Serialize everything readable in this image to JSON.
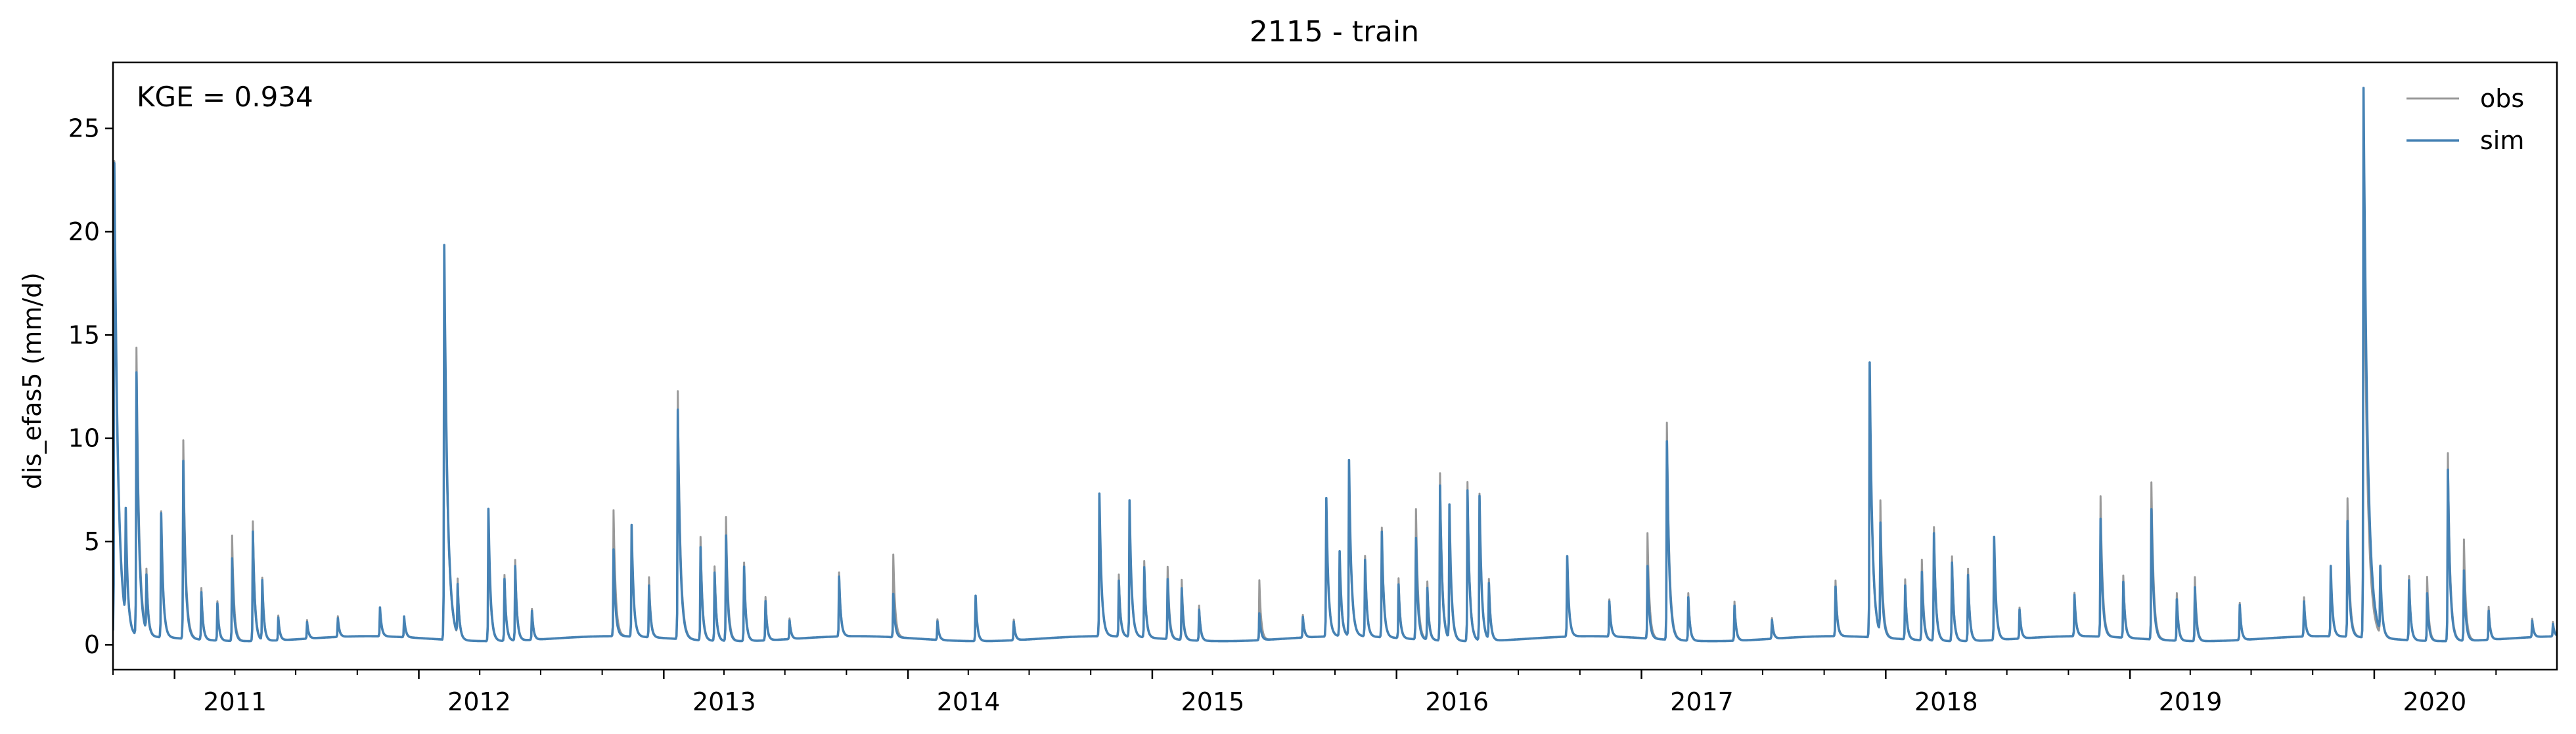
{
  "chart_data": {
    "type": "line",
    "title": "2115 - train",
    "xlabel": "",
    "ylabel": "dis_efas5 (mm/d)",
    "annotation": "KGE = 0.934",
    "xlim": [
      "2010-10-01",
      "2020-09-30"
    ],
    "ylim": [
      -1.2,
      28.2
    ],
    "x_ticks": [
      "2011",
      "2012",
      "2013",
      "2014",
      "2015",
      "2016",
      "2017",
      "2018",
      "2019",
      "2020"
    ],
    "y_ticks": [
      0,
      5,
      10,
      15,
      20,
      25
    ],
    "grid": false,
    "legend_position": "top-right",
    "baseflow": 0.3,
    "series": [
      {
        "name": "obs",
        "color": "#999999",
        "peaks": [
          {
            "x": "2010-10-03",
            "y": 23.3
          },
          {
            "x": "2010-10-20",
            "y": 5.3
          },
          {
            "x": "2010-11-05",
            "y": 14.2
          },
          {
            "x": "2010-11-20",
            "y": 3.2
          },
          {
            "x": "2010-12-12",
            "y": 6.4
          },
          {
            "x": "2011-01-14",
            "y": 9.9
          },
          {
            "x": "2011-02-10",
            "y": 2.8
          },
          {
            "x": "2011-03-06",
            "y": 2.2
          },
          {
            "x": "2011-03-28",
            "y": 5.4
          },
          {
            "x": "2011-04-28",
            "y": 6.1
          },
          {
            "x": "2011-05-12",
            "y": 3.3
          },
          {
            "x": "2011-06-05",
            "y": 1.5
          },
          {
            "x": "2011-07-18",
            "y": 1.2
          },
          {
            "x": "2011-09-02",
            "y": 1.3
          },
          {
            "x": "2011-11-04",
            "y": 1.6
          },
          {
            "x": "2011-12-10",
            "y": 1.2
          },
          {
            "x": "2012-02-08",
            "y": 18.8
          },
          {
            "x": "2012-02-28",
            "y": 3.0
          },
          {
            "x": "2012-04-14",
            "y": 6.2
          },
          {
            "x": "2012-05-08",
            "y": 3.5
          },
          {
            "x": "2012-05-24",
            "y": 4.2
          },
          {
            "x": "2012-06-18",
            "y": 1.8
          },
          {
            "x": "2012-10-18",
            "y": 6.4
          },
          {
            "x": "2012-11-14",
            "y": 5.6
          },
          {
            "x": "2012-12-10",
            "y": 3.2
          },
          {
            "x": "2013-01-22",
            "y": 12.3
          },
          {
            "x": "2013-02-25",
            "y": 5.3
          },
          {
            "x": "2013-03-18",
            "y": 3.9
          },
          {
            "x": "2013-04-04",
            "y": 6.3
          },
          {
            "x": "2013-05-01",
            "y": 4.1
          },
          {
            "x": "2013-06-02",
            "y": 2.4
          },
          {
            "x": "2013-07-08",
            "y": 1.3
          },
          {
            "x": "2013-09-20",
            "y": 3.4
          },
          {
            "x": "2013-12-10",
            "y": 4.3
          },
          {
            "x": "2014-02-14",
            "y": 1.3
          },
          {
            "x": "2014-04-12",
            "y": 2.3
          },
          {
            "x": "2014-06-08",
            "y": 1.3
          },
          {
            "x": "2014-10-14",
            "y": 7.0
          },
          {
            "x": "2014-11-12",
            "y": 3.3
          },
          {
            "x": "2014-11-28",
            "y": 6.8
          },
          {
            "x": "2014-12-20",
            "y": 4.0
          },
          {
            "x": "2015-01-24",
            "y": 3.8
          },
          {
            "x": "2015-02-14",
            "y": 3.2
          },
          {
            "x": "2015-03-12",
            "y": 2.0
          },
          {
            "x": "2015-06-10",
            "y": 3.2
          },
          {
            "x": "2015-08-14",
            "y": 1.4
          },
          {
            "x": "2015-09-18",
            "y": 7.0
          },
          {
            "x": "2015-10-08",
            "y": 4.0
          },
          {
            "x": "2015-10-22",
            "y": 8.5
          },
          {
            "x": "2015-11-15",
            "y": 4.2
          },
          {
            "x": "2015-12-10",
            "y": 5.6
          },
          {
            "x": "2016-01-04",
            "y": 3.2
          },
          {
            "x": "2016-01-30",
            "y": 6.6
          },
          {
            "x": "2016-02-16",
            "y": 3.1
          },
          {
            "x": "2016-03-06",
            "y": 8.4
          },
          {
            "x": "2016-03-20",
            "y": 6.2
          },
          {
            "x": "2016-04-16",
            "y": 8.0
          },
          {
            "x": "2016-05-04",
            "y": 7.4
          },
          {
            "x": "2016-05-18",
            "y": 3.2
          },
          {
            "x": "2016-09-12",
            "y": 4.2
          },
          {
            "x": "2016-11-14",
            "y": 2.1
          },
          {
            "x": "2017-01-10",
            "y": 5.4
          },
          {
            "x": "2017-02-08",
            "y": 10.8
          },
          {
            "x": "2017-03-12",
            "y": 2.6
          },
          {
            "x": "2017-05-20",
            "y": 2.2
          },
          {
            "x": "2017-07-15",
            "y": 1.3
          },
          {
            "x": "2017-10-18",
            "y": 3.0
          },
          {
            "x": "2017-12-08",
            "y": 13.3
          },
          {
            "x": "2017-12-24",
            "y": 6.7
          },
          {
            "x": "2018-01-30",
            "y": 3.2
          },
          {
            "x": "2018-02-24",
            "y": 4.2
          },
          {
            "x": "2018-03-14",
            "y": 5.8
          },
          {
            "x": "2018-04-10",
            "y": 4.4
          },
          {
            "x": "2018-05-04",
            "y": 3.8
          },
          {
            "x": "2018-06-12",
            "y": 5.2
          },
          {
            "x": "2018-07-20",
            "y": 1.8
          },
          {
            "x": "2018-10-10",
            "y": 2.4
          },
          {
            "x": "2018-11-18",
            "y": 7.1
          },
          {
            "x": "2018-12-22",
            "y": 3.3
          },
          {
            "x": "2019-02-02",
            "y": 7.9
          },
          {
            "x": "2019-03-12",
            "y": 2.6
          },
          {
            "x": "2019-04-08",
            "y": 3.4
          },
          {
            "x": "2019-06-14",
            "y": 2.1
          },
          {
            "x": "2019-09-18",
            "y": 2.2
          },
          {
            "x": "2019-10-28",
            "y": 3.6
          },
          {
            "x": "2019-11-22",
            "y": 7.0
          },
          {
            "x": "2019-12-16",
            "y": 23.2
          },
          {
            "x": "2020-01-10",
            "y": 3.6
          },
          {
            "x": "2020-02-22",
            "y": 3.4
          },
          {
            "x": "2020-03-20",
            "y": 3.4
          },
          {
            "x": "2020-04-20",
            "y": 9.4
          },
          {
            "x": "2020-05-14",
            "y": 5.2
          },
          {
            "x": "2020-06-20",
            "y": 1.9
          },
          {
            "x": "2020-08-24",
            "y": 1.2
          },
          {
            "x": "2020-09-24",
            "y": 1.0
          }
        ]
      },
      {
        "name": "sim",
        "color": "#4682b4",
        "peaks": [
          {
            "x": "2010-10-03",
            "y": 23.2
          },
          {
            "x": "2010-10-20",
            "y": 5.5
          },
          {
            "x": "2010-11-05",
            "y": 13.0
          },
          {
            "x": "2010-11-20",
            "y": 3.0
          },
          {
            "x": "2010-12-12",
            "y": 6.3
          },
          {
            "x": "2011-01-14",
            "y": 8.9
          },
          {
            "x": "2011-02-10",
            "y": 2.6
          },
          {
            "x": "2011-03-06",
            "y": 2.1
          },
          {
            "x": "2011-03-28",
            "y": 4.3
          },
          {
            "x": "2011-04-28",
            "y": 5.6
          },
          {
            "x": "2011-05-12",
            "y": 3.2
          },
          {
            "x": "2011-06-05",
            "y": 1.4
          },
          {
            "x": "2011-07-18",
            "y": 1.1
          },
          {
            "x": "2011-09-02",
            "y": 1.2
          },
          {
            "x": "2011-11-04",
            "y": 1.7
          },
          {
            "x": "2011-12-10",
            "y": 1.3
          },
          {
            "x": "2012-02-08",
            "y": 19.4
          },
          {
            "x": "2012-02-28",
            "y": 2.7
          },
          {
            "x": "2012-04-14",
            "y": 6.7
          },
          {
            "x": "2012-05-08",
            "y": 3.3
          },
          {
            "x": "2012-05-24",
            "y": 3.9
          },
          {
            "x": "2012-06-18",
            "y": 1.7
          },
          {
            "x": "2012-10-18",
            "y": 4.5
          },
          {
            "x": "2012-11-14",
            "y": 5.7
          },
          {
            "x": "2012-12-10",
            "y": 2.8
          },
          {
            "x": "2013-01-22",
            "y": 11.4
          },
          {
            "x": "2013-02-25",
            "y": 4.8
          },
          {
            "x": "2013-03-18",
            "y": 3.6
          },
          {
            "x": "2013-04-04",
            "y": 5.4
          },
          {
            "x": "2013-05-01",
            "y": 3.9
          },
          {
            "x": "2013-06-02",
            "y": 2.2
          },
          {
            "x": "2013-07-08",
            "y": 1.2
          },
          {
            "x": "2013-09-20",
            "y": 3.2
          },
          {
            "x": "2013-12-10",
            "y": 2.4
          },
          {
            "x": "2014-02-14",
            "y": 1.2
          },
          {
            "x": "2014-04-12",
            "y": 2.5
          },
          {
            "x": "2014-06-08",
            "y": 1.2
          },
          {
            "x": "2014-10-14",
            "y": 7.2
          },
          {
            "x": "2014-11-12",
            "y": 3.0
          },
          {
            "x": "2014-11-28",
            "y": 6.9
          },
          {
            "x": "2014-12-20",
            "y": 3.7
          },
          {
            "x": "2015-01-24",
            "y": 3.2
          },
          {
            "x": "2015-02-14",
            "y": 2.8
          },
          {
            "x": "2015-03-12",
            "y": 1.8
          },
          {
            "x": "2015-06-10",
            "y": 1.6
          },
          {
            "x": "2015-08-14",
            "y": 1.3
          },
          {
            "x": "2015-09-18",
            "y": 7.0
          },
          {
            "x": "2015-10-08",
            "y": 4.4
          },
          {
            "x": "2015-10-22",
            "y": 8.8
          },
          {
            "x": "2015-11-15",
            "y": 4.0
          },
          {
            "x": "2015-12-10",
            "y": 5.4
          },
          {
            "x": "2016-01-04",
            "y": 2.9
          },
          {
            "x": "2016-01-30",
            "y": 5.2
          },
          {
            "x": "2016-02-16",
            "y": 2.8
          },
          {
            "x": "2016-03-06",
            "y": 7.8
          },
          {
            "x": "2016-03-20",
            "y": 6.8
          },
          {
            "x": "2016-04-16",
            "y": 7.6
          },
          {
            "x": "2016-05-04",
            "y": 7.3
          },
          {
            "x": "2016-05-18",
            "y": 3.0
          },
          {
            "x": "2016-09-12",
            "y": 4.2
          },
          {
            "x": "2016-11-14",
            "y": 2.0
          },
          {
            "x": "2017-01-10",
            "y": 3.8
          },
          {
            "x": "2017-02-08",
            "y": 9.9
          },
          {
            "x": "2017-03-12",
            "y": 2.4
          },
          {
            "x": "2017-05-20",
            "y": 2.0
          },
          {
            "x": "2017-07-15",
            "y": 1.2
          },
          {
            "x": "2017-10-18",
            "y": 2.7
          },
          {
            "x": "2017-12-08",
            "y": 13.6
          },
          {
            "x": "2017-12-24",
            "y": 5.6
          },
          {
            "x": "2018-01-30",
            "y": 2.9
          },
          {
            "x": "2018-02-24",
            "y": 3.6
          },
          {
            "x": "2018-03-14",
            "y": 5.5
          },
          {
            "x": "2018-04-10",
            "y": 4.1
          },
          {
            "x": "2018-05-04",
            "y": 3.5
          },
          {
            "x": "2018-06-12",
            "y": 5.3
          },
          {
            "x": "2018-07-20",
            "y": 1.7
          },
          {
            "x": "2018-10-10",
            "y": 2.3
          },
          {
            "x": "2018-11-18",
            "y": 6.0
          },
          {
            "x": "2018-12-22",
            "y": 3.0
          },
          {
            "x": "2019-02-02",
            "y": 6.6
          },
          {
            "x": "2019-03-12",
            "y": 2.3
          },
          {
            "x": "2019-04-08",
            "y": 2.9
          },
          {
            "x": "2019-06-14",
            "y": 2.0
          },
          {
            "x": "2019-09-18",
            "y": 2.0
          },
          {
            "x": "2019-10-28",
            "y": 3.7
          },
          {
            "x": "2019-11-22",
            "y": 5.9
          },
          {
            "x": "2019-12-16",
            "y": 26.9
          },
          {
            "x": "2020-01-10",
            "y": 3.4
          },
          {
            "x": "2020-02-22",
            "y": 3.2
          },
          {
            "x": "2020-03-20",
            "y": 2.6
          },
          {
            "x": "2020-04-20",
            "y": 8.6
          },
          {
            "x": "2020-05-14",
            "y": 3.7
          },
          {
            "x": "2020-06-20",
            "y": 1.7
          },
          {
            "x": "2020-08-24",
            "y": 1.1
          },
          {
            "x": "2020-09-24",
            "y": 0.9
          }
        ]
      }
    ]
  }
}
